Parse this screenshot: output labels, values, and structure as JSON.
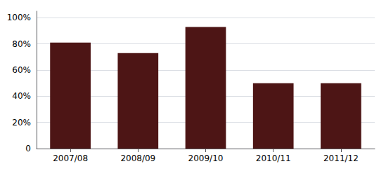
{
  "chart_data": {
    "type": "bar",
    "categories": [
      "2007/08",
      "2008/09",
      "2009/10",
      "2010/11",
      "2011/12"
    ],
    "values": [
      0.81,
      0.73,
      0.93,
      0.5,
      0.5
    ],
    "color": "#4d1515",
    "ylim": [
      0,
      1.05
    ],
    "yticks": [
      0,
      {
        "value": 0.2,
        "label": "20%"
      },
      {
        "value": 0.4,
        "label": "40%"
      },
      {
        "value": 0.6,
        "label": "60%"
      },
      {
        "value": 0.8,
        "label": "80%"
      },
      {
        "value": 1.0,
        "label": "100%"
      }
    ],
    "grid": true
  }
}
